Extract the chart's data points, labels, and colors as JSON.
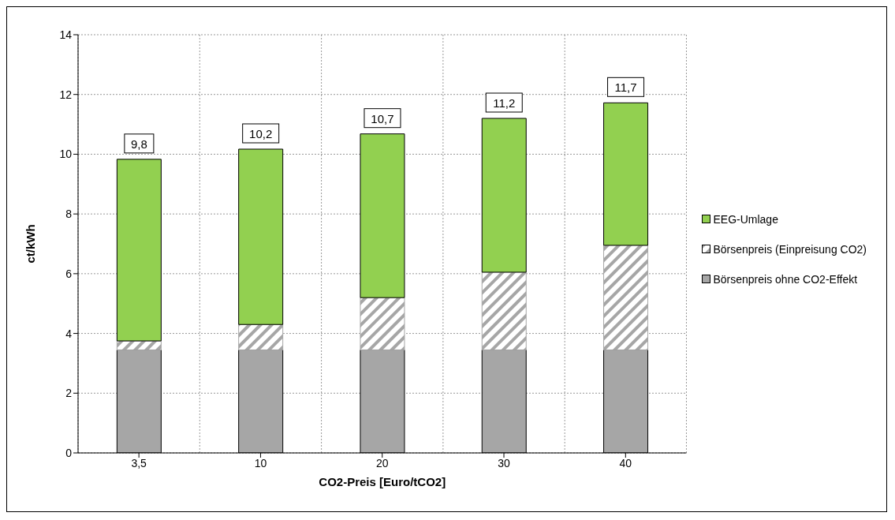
{
  "chart_data": {
    "type": "bar",
    "stacked": true,
    "xlabel": "CO2-Preis [Euro/tCO2]",
    "ylabel": "ct/kWh",
    "categories": [
      "3,5",
      "10",
      "20",
      "30",
      "40"
    ],
    "series": [
      {
        "name": "Börsenpreis ohne CO2-Effekt",
        "color": "#a6a6a6",
        "values": [
          3.45,
          3.45,
          3.45,
          3.45,
          3.45
        ]
      },
      {
        "name": "Börsenpreis (Einpreisung CO2)",
        "color": "#a6a6a6",
        "values": [
          0.3,
          0.85,
          1.75,
          2.6,
          3.5
        ]
      },
      {
        "name": "EEG-Umlage",
        "color": "#92d050",
        "values": [
          6.08,
          5.87,
          5.48,
          5.15,
          4.77
        ]
      }
    ],
    "totals": [
      "9,8",
      "10,2",
      "10,7",
      "11,2",
      "11,7"
    ],
    "ylim": [
      0,
      14
    ],
    "yticks": [
      0,
      2,
      4,
      6,
      8,
      10,
      12,
      14
    ],
    "grid": true,
    "legend": "right"
  }
}
